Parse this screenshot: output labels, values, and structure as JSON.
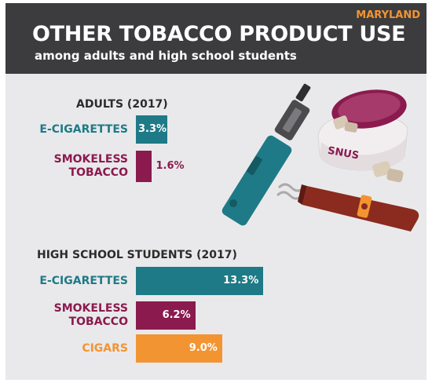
{
  "header": {
    "state": "MARYLAND",
    "title": "OTHER TOBACCO PRODUCT USE",
    "subtitle": "among adults and high school students"
  },
  "colors": {
    "header_bg": "#3c3c3e",
    "e_cigarettes": "#1e7a86",
    "smokeless": "#8b1a4e",
    "cigars": "#f39432",
    "background": "#e9e9eb"
  },
  "illustration": {
    "snus_label": "SNUS"
  },
  "chart_data": [
    {
      "type": "bar",
      "orientation": "horizontal",
      "title": "ADULTS (2017)",
      "unit": "%",
      "categories": [
        "E-CIGARETTES",
        "SMOKELESS TOBACCO"
      ],
      "category_lines": [
        [
          "E-CIGARETTES"
        ],
        [
          "SMOKELESS",
          "TOBACCO"
        ]
      ],
      "values": [
        3.3,
        1.6
      ],
      "value_labels": [
        "3.3%",
        "1.6%"
      ],
      "colors": [
        "#1e7a86",
        "#8b1a4e"
      ]
    },
    {
      "type": "bar",
      "orientation": "horizontal",
      "title": "HIGH SCHOOL STUDENTS (2017)",
      "unit": "%",
      "categories": [
        "E-CIGARETTES",
        "SMOKELESS TOBACCO",
        "CIGARS"
      ],
      "category_lines": [
        [
          "E-CIGARETTES"
        ],
        [
          "SMOKELESS",
          "TOBACCO"
        ],
        [
          "CIGARS"
        ]
      ],
      "values": [
        13.3,
        6.2,
        9.0
      ],
      "value_labels": [
        "13.3%",
        "6.2%",
        "9.0%"
      ],
      "colors": [
        "#1e7a86",
        "#8b1a4e",
        "#f39432"
      ]
    }
  ]
}
